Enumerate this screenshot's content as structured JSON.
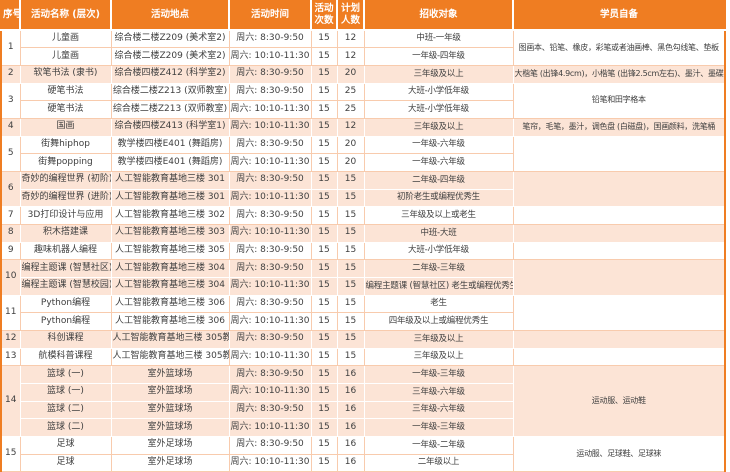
{
  "colors": {
    "header_orange": "#EF7D22",
    "band_peach": "#FCE4D6",
    "grid_line_peach": "#F8CBAD",
    "body_text": "#404040",
    "header_text": "#FFFFFF"
  },
  "table": {
    "headers": [
      "序号",
      "活动名称 (层次)",
      "活动地点",
      "活动时间",
      "活动次数",
      "计划人数",
      "招收对象",
      "学员自备"
    ],
    "groups": [
      {
        "no": "1",
        "supplies": "图画本、铅笔、橡皮，彩笔或者油画棒、黑色勾线笔、垫板",
        "rows": [
          {
            "name": "儿童画",
            "place": "综合楼二楼Z209 (美术室2)",
            "time": "周六: 8:30-9:50",
            "sessions": "15",
            "planned": "12",
            "target": "中班-一年级"
          },
          {
            "name": "儿童画",
            "place": "综合楼二楼Z209 (美术室2)",
            "time": "周六: 10:10-11:30",
            "sessions": "15",
            "planned": "12",
            "target": "一年级-四年级"
          }
        ]
      },
      {
        "no": "2",
        "supplies": "大楷笔 (出锋4.9cm)，小楷笔 (出锋2.5cm左右)、墨汁、墨碟",
        "rows": [
          {
            "name": "软笔书法 (隶书)",
            "place": "综合楼四楼Z412 (科学室2)",
            "time": "周六: 8:30-9:50",
            "sessions": "15",
            "planned": "20",
            "target": "三年级及以上"
          }
        ]
      },
      {
        "no": "3",
        "supplies": "铅笔和田字格本",
        "rows": [
          {
            "name": "硬笔书法",
            "place": "综合楼二楼Z213 (双师教室)",
            "time": "周六: 8:30-9:50",
            "sessions": "15",
            "planned": "25",
            "target": "大班-小学低年级"
          },
          {
            "name": "硬笔书法",
            "place": "综合楼二楼Z213 (双师教室)",
            "time": "周六: 10:10-11:30",
            "sessions": "15",
            "planned": "25",
            "target": "大班-小学低年级"
          }
        ]
      },
      {
        "no": "4",
        "supplies": "笔帘，毛笔，墨汁，调色盘 (白磁盘)，国画颜料，洗笔桶",
        "rows": [
          {
            "name": "国画",
            "place": "综合楼四楼Z413 (科学室1)",
            "time": "周六: 10:10-11:30",
            "sessions": "15",
            "planned": "12",
            "target": "三年级及以上"
          }
        ]
      },
      {
        "no": "5",
        "supplies": "",
        "rows": [
          {
            "name": "街舞hiphop",
            "place": "教学楼四楼E401 (舞蹈房)",
            "time": "周六: 8:30-9:50",
            "sessions": "15",
            "planned": "20",
            "target": "一年级-六年级"
          },
          {
            "name": "街舞popping",
            "place": "教学楼四楼E401 (舞蹈房)",
            "time": "周六: 10:10-11:30",
            "sessions": "15",
            "planned": "20",
            "target": "一年级-六年级"
          }
        ]
      },
      {
        "no": "6",
        "supplies": "",
        "rows": [
          {
            "name": "奇妙的编程世界 (初阶)",
            "place": "人工智能教育基地三楼 301",
            "time": "周六: 8:30-9:50",
            "sessions": "15",
            "planned": "15",
            "target": "二年级-四年级"
          },
          {
            "name": "奇妙的编程世界 (进阶)",
            "place": "人工智能教育基地三楼 301",
            "time": "周六: 10:10-11:30",
            "sessions": "15",
            "planned": "15",
            "target": "初阶老生或编程优秀生"
          }
        ]
      },
      {
        "no": "7",
        "supplies": "",
        "rows": [
          {
            "name": "3D打印设计与应用",
            "place": "人工智能教育基地三楼 302",
            "time": "周六: 8:30-9:50",
            "sessions": "15",
            "planned": "15",
            "target": "三年级及以上或老生"
          }
        ]
      },
      {
        "no": "8",
        "supplies": "",
        "rows": [
          {
            "name": "积木搭建课",
            "place": "人工智能教育基地三楼 303",
            "time": "周六: 10:10-11:30",
            "sessions": "15",
            "planned": "15",
            "target": "中班-大班"
          }
        ]
      },
      {
        "no": "9",
        "supplies": "",
        "rows": [
          {
            "name": "趣味机器人编程",
            "place": "人工智能教育基地三楼 305",
            "time": "周六: 8:30-9:50",
            "sessions": "15",
            "planned": "15",
            "target": "大班-小学低年级"
          }
        ]
      },
      {
        "no": "10",
        "supplies": "",
        "rows": [
          {
            "name": "编程主题课 (智慧社区)",
            "place": "人工智能教育基地三楼 304",
            "time": "周六: 8:30-9:50",
            "sessions": "15",
            "planned": "15",
            "target": "二年级-三年级"
          },
          {
            "name": "编程主题课 (智慧校园)",
            "place": "人工智能教育基地三楼 304",
            "time": "周六: 10:10-11:30",
            "sessions": "15",
            "planned": "15",
            "target": "编程主题课 (智慧社区) 老生或编程优秀生"
          }
        ]
      },
      {
        "no": "11",
        "supplies": "",
        "rows": [
          {
            "name": "Python编程",
            "place": "人工智能教育基地三楼 306",
            "time": "周六: 8:30-9:50",
            "sessions": "15",
            "planned": "15",
            "target": "老生"
          },
          {
            "name": "Python编程",
            "place": "人工智能教育基地三楼 306",
            "time": "周六: 10:10-11:30",
            "sessions": "15",
            "planned": "15",
            "target": "四年级及以上或编程优秀生"
          }
        ]
      },
      {
        "no": "12",
        "supplies": "",
        "rows": [
          {
            "name": "科创课程",
            "place": "人工智能教育基地三楼 305教室",
            "time": "周六: 8:30-9:50",
            "sessions": "15",
            "planned": "15",
            "target": "三年级及以上"
          }
        ]
      },
      {
        "no": "13",
        "supplies": "",
        "rows": [
          {
            "name": "航模科普课程",
            "place": "人工智能教育基地三楼 305教室",
            "time": "周六: 10:10-11:30",
            "sessions": "15",
            "planned": "15",
            "target": "三年级及以上"
          }
        ]
      },
      {
        "no": "14",
        "supplies": "运动服、运动鞋",
        "rows": [
          {
            "name": "篮球 (一)",
            "place": "室外篮球场",
            "time": "周六: 8:30-9:50",
            "sessions": "15",
            "planned": "16",
            "target": "一年级-三年级"
          },
          {
            "name": "篮球 (一)",
            "place": "室外篮球场",
            "time": "周六: 10:10-11:30",
            "sessions": "15",
            "planned": "16",
            "target": "三年级-六年级"
          },
          {
            "name": "篮球 (二)",
            "place": "室外篮球场",
            "time": "周六: 8:30-9:50",
            "sessions": "15",
            "planned": "16",
            "target": "三年级-六年级"
          },
          {
            "name": "篮球 (二)",
            "place": "室外篮球场",
            "time": "周六: 10:10-11:30",
            "sessions": "15",
            "planned": "16",
            "target": "一年级-三年级"
          }
        ]
      },
      {
        "no": "15",
        "supplies": "运动服、足球鞋、足球袜",
        "rows": [
          {
            "name": "足球",
            "place": "室外足球场",
            "time": "周六: 8:30-9:50",
            "sessions": "15",
            "planned": "16",
            "target": "一年级-二年级"
          },
          {
            "name": "足球",
            "place": "室外足球场",
            "time": "周六: 10:10-11:30",
            "sessions": "15",
            "planned": "16",
            "target": "二年级以上"
          }
        ]
      }
    ]
  }
}
